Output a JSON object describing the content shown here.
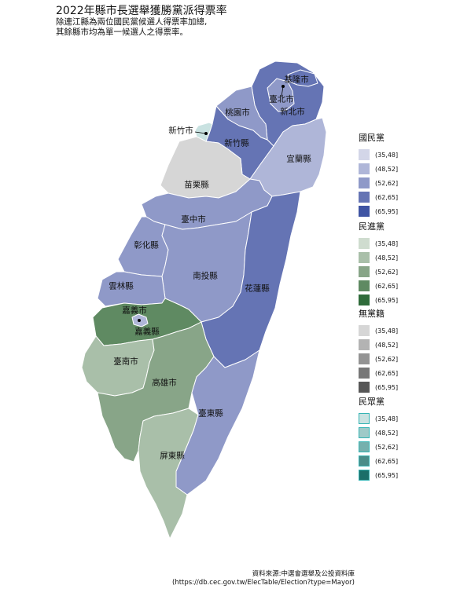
{
  "title": "2022年縣市長選舉獲勝黨派得票率",
  "subtitle": [
    "除連江縣為兩位國民黨候選人得票率加總,",
    "其餘縣市均為單一候選人之得票率。"
  ],
  "counties": [
    {
      "name": "基隆市",
      "party": "國民黨",
      "bin": "(62,65]"
    },
    {
      "name": "臺北市",
      "party": "國民黨",
      "bin": "(52,62]"
    },
    {
      "name": "新北市",
      "party": "國民黨",
      "bin": "(62,65]"
    },
    {
      "name": "桃園市",
      "party": "國民黨",
      "bin": "(52,62]"
    },
    {
      "name": "新竹市",
      "party": "民眾黨",
      "bin": "(35,48]"
    },
    {
      "name": "新竹縣",
      "party": "國民黨",
      "bin": "(62,65]"
    },
    {
      "name": "宜蘭縣",
      "party": "國民黨",
      "bin": "(48,52]"
    },
    {
      "name": "苗栗縣",
      "party": "無黨籍",
      "bin": "(35,48]"
    },
    {
      "name": "臺中市",
      "party": "國民黨",
      "bin": "(52,62]"
    },
    {
      "name": "彰化縣",
      "party": "國民黨",
      "bin": "(52,62]"
    },
    {
      "name": "南投縣",
      "party": "國民黨",
      "bin": "(52,62]"
    },
    {
      "name": "花蓮縣",
      "party": "國民黨",
      "bin": "(62,65]"
    },
    {
      "name": "雲林縣",
      "party": "國民黨",
      "bin": "(52,62]"
    },
    {
      "name": "嘉義市",
      "party": "國民黨",
      "bin": "(48,52]"
    },
    {
      "name": "嘉義縣",
      "party": "民進黨",
      "bin": "(62,65]"
    },
    {
      "name": "臺南市",
      "party": "民進黨",
      "bin": "(48,52]"
    },
    {
      "name": "高雄市",
      "party": "民進黨",
      "bin": "(52,62]"
    },
    {
      "name": "屏東縣",
      "party": "民進黨",
      "bin": "(48,52]"
    },
    {
      "name": "臺東縣",
      "party": "國民黨",
      "bin": "(52,62]"
    }
  ],
  "legend": [
    {
      "party": "國民黨",
      "bins": [
        "(35,48]",
        "(48,52]",
        "(52,62]",
        "(62,65]",
        "(65,95]"
      ],
      "colors": [
        "#d3d6e8",
        "#afb6d8",
        "#8f99c8",
        "#6574b4",
        "#3f54a3"
      ]
    },
    {
      "party": "民進黨",
      "bins": [
        "(35,48]",
        "(48,52]",
        "(52,62]",
        "(62,65]",
        "(65,95]"
      ],
      "colors": [
        "#cfdccf",
        "#a9bfa9",
        "#88a588",
        "#5f8a62",
        "#2f6b3a"
      ]
    },
    {
      "party": "無黨籍",
      "bins": [
        "(35,48]",
        "(48,52]",
        "(52,62]",
        "(62,65]",
        "(65,95]"
      ],
      "colors": [
        "#d6d6d6",
        "#b3b3b3",
        "#939393",
        "#777777",
        "#575757"
      ]
    },
    {
      "party": "民眾黨",
      "bins": [
        "(35,48]",
        "(48,52]",
        "(52,62]",
        "(62,65]",
        "(65,95]"
      ],
      "colors": [
        "#c9e2e1",
        "#9fcac8",
        "#76b0ad",
        "#4a8c88",
        "#1a6e69"
      ],
      "border": "#35b4b4"
    }
  ],
  "source": [
    "資料來源:中選會選舉及公投資料庫",
    "(https://db.cec.gov.tw/ElecTable/Election?type=Mayor)"
  ]
}
